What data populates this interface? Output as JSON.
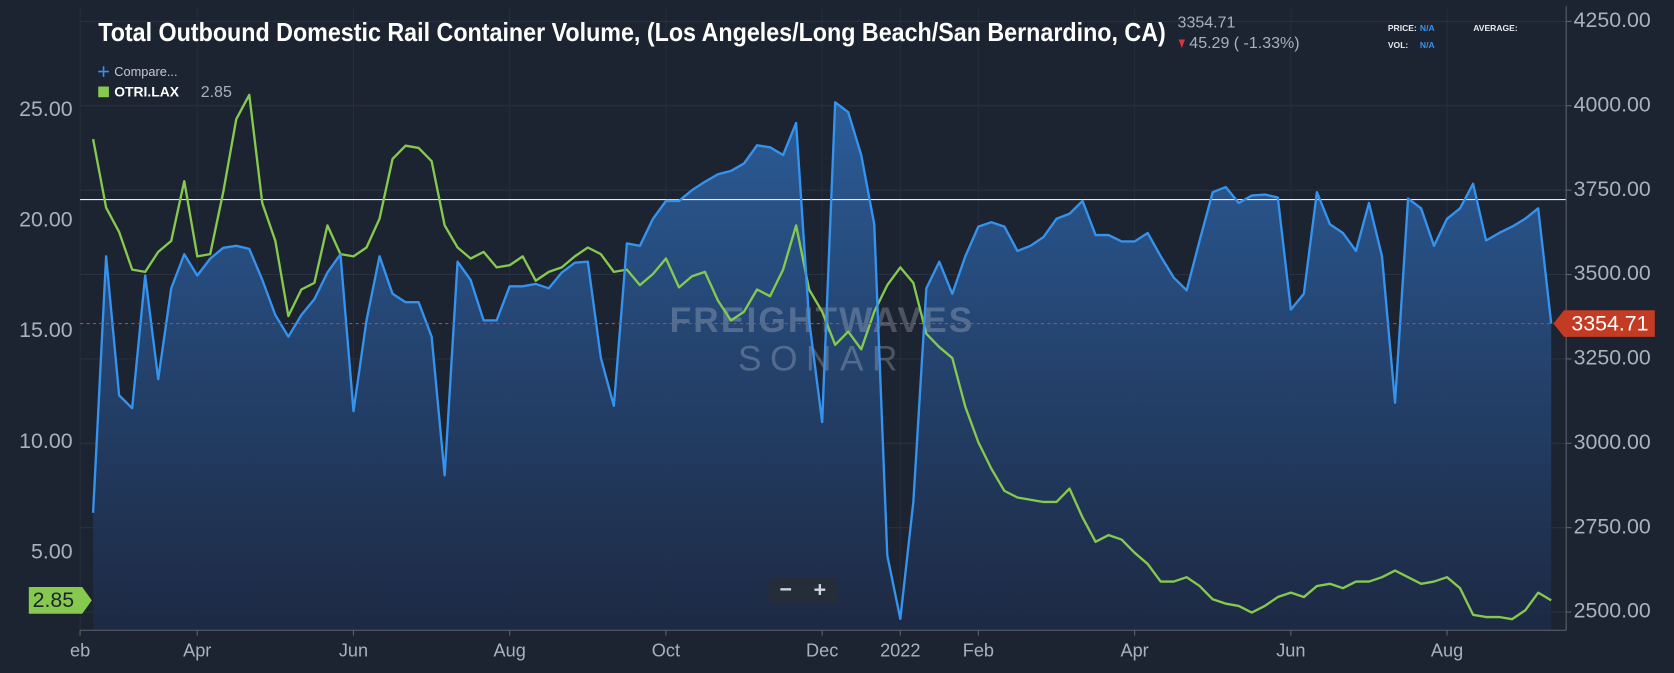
{
  "chart_data": {
    "type": "line",
    "title": "Total Outbound Domestic Rail Container Volume, (Los Angeles/Long Beach/San Bernardino, CA)",
    "change": "45.29 ( -1.33%)",
    "info": {
      "price_label": "PRICE:",
      "price_value": "N/A",
      "average_label": "AVERAGE:",
      "vol_label": "VOL:",
      "vol_value": "N/A"
    },
    "compare": "Compare...",
    "watermark": [
      "FREIGHTWAVES",
      "SONAR"
    ],
    "zoom_controls": [
      "−",
      "+"
    ],
    "categories": [
      "eb",
      null,
      null,
      null,
      null,
      null,
      null,
      null,
      null,
      "Apr",
      null,
      null,
      null,
      null,
      null,
      null,
      null,
      null,
      null,
      null,
      null,
      "Jun",
      null,
      null,
      null,
      null,
      null,
      null,
      null,
      null,
      null,
      null,
      null,
      "Aug",
      null,
      null,
      null,
      null,
      null,
      null,
      null,
      null,
      null,
      null,
      null,
      "Oct",
      null,
      null,
      null,
      null,
      null,
      null,
      null,
      null,
      null,
      null,
      null,
      "Dec",
      null,
      null,
      null,
      null,
      null,
      "2022",
      null,
      null,
      null,
      null,
      null,
      "Feb",
      null,
      null,
      null,
      null,
      null,
      null,
      null,
      null,
      null,
      null,
      null,
      "Apr",
      null,
      null,
      null,
      null,
      null,
      null,
      null,
      null,
      null,
      null,
      null,
      "Jun",
      null,
      null,
      null,
      null,
      null,
      null,
      null,
      null,
      null,
      null,
      null,
      "Aug",
      null,
      null,
      null,
      null,
      null,
      null,
      null,
      null
    ],
    "series": [
      {
        "name": "OTRI.LAX",
        "color": "#86c94f",
        "axis": "y",
        "values": [
          null,
          23.7,
          20.6,
          19.5,
          17.8,
          17.7,
          18.6,
          19.1,
          21.8,
          18.4,
          18.5,
          21.3,
          24.6,
          25.7,
          20.8,
          19.1,
          15.7,
          16.9,
          17.2,
          19.8,
          18.5,
          18.4,
          18.8,
          20.1,
          22.8,
          23.4,
          23.3,
          22.7,
          19.8,
          18.8,
          18.3,
          18.6,
          17.9,
          18.0,
          18.4,
          17.3,
          17.7,
          17.9,
          18.4,
          18.8,
          18.5,
          17.7,
          17.8,
          17.1,
          17.6,
          18.3,
          17.0,
          17.5,
          17.7,
          16.4,
          15.5,
          15.9,
          16.9,
          16.6,
          17.8,
          19.8,
          16.9,
          15.9,
          14.4,
          15.0,
          14.2,
          15.9,
          17.1,
          17.9,
          17.2,
          14.9,
          14.3,
          13.8,
          11.6,
          10.0,
          8.8,
          7.8,
          7.5,
          7.4,
          7.3,
          7.3,
          7.9,
          6.6,
          5.5,
          5.8,
          5.6,
          5.0,
          4.5,
          3.7,
          3.7,
          3.9,
          3.5,
          2.9,
          2.7,
          2.6,
          2.3,
          2.6,
          3.0,
          3.2,
          3.0,
          3.5,
          3.6,
          3.4,
          3.7,
          3.7,
          3.9,
          4.2,
          3.9,
          3.6,
          3.7,
          3.9,
          3.4,
          2.2,
          2.1,
          2.1,
          2.0,
          2.4,
          3.2,
          2.85
        ]
      },
      {
        "color": "#3593ee",
        "axis": "y2",
        "values": [
          null,
          2794,
          3554,
          3142,
          3104,
          3497,
          3190,
          3459,
          3560,
          3497,
          3547,
          3579,
          3585,
          3576,
          3484,
          3380,
          3316,
          3380,
          3427,
          3506,
          3560,
          3095,
          3364,
          3554,
          3443,
          3418,
          3418,
          3316,
          2905,
          3538,
          3484,
          3364,
          3364,
          3465,
          3465,
          3472,
          3459,
          3506,
          3535,
          3538,
          3253,
          3111,
          3592,
          3585,
          3665,
          3718,
          3718,
          3750,
          3775,
          3797,
          3807,
          3829,
          3883,
          3877,
          3854,
          3949,
          3364,
          3063,
          4010,
          3981,
          3854,
          3649,
          2668,
          2480,
          2826,
          3459,
          3538,
          3443,
          3554,
          3642,
          3655,
          3642,
          3570,
          3585,
          3611,
          3665,
          3680,
          3718,
          3617,
          3617,
          3598,
          3598,
          3623,
          3554,
          3491,
          3453,
          3601,
          3744,
          3759,
          3712,
          3734,
          3737,
          3728,
          3396,
          3443,
          3744,
          3649,
          3623,
          3570,
          3712,
          3554,
          3120,
          3725,
          3696,
          3585,
          3665,
          3696,
          3769,
          3601,
          3623,
          3642,
          3665,
          3696,
          3354.71
        ]
      }
    ],
    "ylim": [
      1.5,
      29.6
    ],
    "yticks": [
      {
        "value": 5,
        "label": "5.00"
      },
      {
        "value": 10,
        "label": "10.00"
      },
      {
        "value": 15,
        "label": "15.00"
      },
      {
        "value": 20,
        "label": "20.00"
      },
      {
        "value": 25,
        "label": "25.00"
      }
    ],
    "y2lim": [
      2446,
      4288
    ],
    "y2ticks": [
      {
        "value": 2500,
        "label": "2500.00"
      },
      {
        "value": 2750,
        "label": "2750.00"
      },
      {
        "value": 3000,
        "label": "3000.00"
      },
      {
        "value": 3250,
        "label": "3250.00"
      },
      {
        "value": 3500,
        "label": "3500.00"
      },
      {
        "value": 3750,
        "label": "3750.00"
      },
      {
        "value": 4000,
        "label": "4000.00"
      },
      {
        "value": 4250,
        "label": "4250.00"
      }
    ],
    "reference_line": {
      "value": 3722,
      "axis": "y2",
      "color": "#e8ecf0"
    },
    "grid": true
  }
}
